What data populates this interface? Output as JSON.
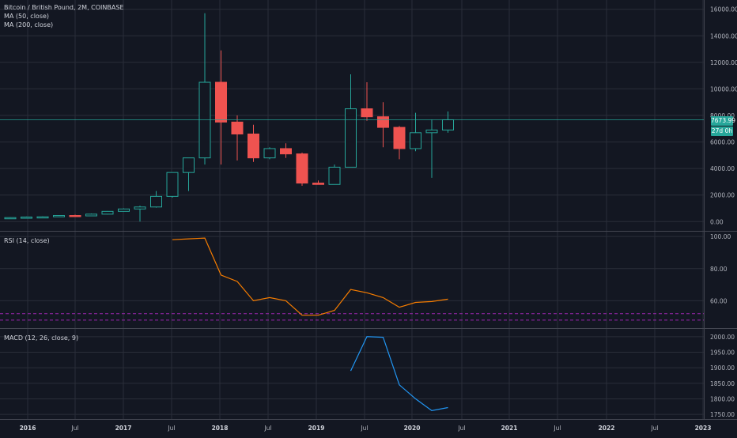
{
  "legend": {
    "symbol": "Bitcoin / British Pound, 2M, COINBASE",
    "ma50": "MA (50, close)",
    "ma200": "MA (200, close)"
  },
  "price_badges": {
    "last_price": "7673.99",
    "countdown": "27d 0h"
  },
  "colors": {
    "background": "#131722",
    "grid": "#2a2e39",
    "up": "#26a69a",
    "down": "#ef5350",
    "rsi_line": "#f57c00",
    "rsi_band": "#9c27b0",
    "macd_line": "#2196f3",
    "axis_text": "#b2b5be",
    "last_price_badge": "#26a69a"
  },
  "chart_data": [
    {
      "type": "candlestick",
      "title": "Bitcoin / British Pound, 2M, COINBASE",
      "x_ticks": [
        "2016",
        "Jul",
        "2017",
        "Jul",
        "2018",
        "Jul",
        "2019",
        "Jul",
        "2020",
        "Jul",
        "2021",
        "Jul",
        "2022",
        "Jul",
        "2023"
      ],
      "y_ticks": [
        "0.00",
        "2000.00",
        "4000.00",
        "6000.00",
        "8000.00",
        "10000.00",
        "12000.00",
        "14000.00",
        "16000.00"
      ],
      "ylim": [
        -700,
        16700
      ],
      "candles": [
        {
          "open": 280,
          "high": 330,
          "low": 240,
          "close": 300
        },
        {
          "open": 300,
          "high": 380,
          "low": 290,
          "close": 340
        },
        {
          "open": 340,
          "high": 400,
          "low": 300,
          "close": 360
        },
        {
          "open": 360,
          "high": 480,
          "low": 340,
          "close": 460
        },
        {
          "open": 460,
          "high": 520,
          "low": 400,
          "close": 430
        },
        {
          "open": 430,
          "high": 600,
          "low": 420,
          "close": 560
        },
        {
          "open": 560,
          "high": 800,
          "low": 540,
          "close": 770
        },
        {
          "open": 770,
          "high": 1000,
          "low": 750,
          "close": 950
        },
        {
          "open": 950,
          "high": 1200,
          "low": 0,
          "close": 1100
        },
        {
          "open": 1100,
          "high": 2300,
          "low": 1050,
          "close": 1900
        },
        {
          "open": 1900,
          "high": 3700,
          "low": 1800,
          "close": 3700
        },
        {
          "open": 3700,
          "high": 4800,
          "low": 2300,
          "close": 4800
        },
        {
          "open": 4800,
          "high": 15700,
          "low": 4300,
          "close": 10500
        },
        {
          "open": 10500,
          "high": 12900,
          "low": 4300,
          "close": 7500
        },
        {
          "open": 7500,
          "high": 8000,
          "low": 4600,
          "close": 6600
        },
        {
          "open": 6600,
          "high": 7300,
          "low": 4500,
          "close": 4800
        },
        {
          "open": 4800,
          "high": 5600,
          "low": 4700,
          "close": 5500
        },
        {
          "open": 5500,
          "high": 5900,
          "low": 4800,
          "close": 5100
        },
        {
          "open": 5100,
          "high": 5200,
          "low": 2700,
          "close": 2900
        },
        {
          "open": 2900,
          "high": 3100,
          "low": 2800,
          "close": 2800
        },
        {
          "open": 2800,
          "high": 4300,
          "low": 2800,
          "close": 4100
        },
        {
          "open": 4100,
          "high": 11100,
          "low": 4100,
          "close": 8500
        },
        {
          "open": 8500,
          "high": 10500,
          "low": 7600,
          "close": 7900
        },
        {
          "open": 7900,
          "high": 9000,
          "low": 5600,
          "close": 7100
        },
        {
          "open": 7100,
          "high": 7200,
          "low": 4700,
          "close": 5500
        },
        {
          "open": 5500,
          "high": 8200,
          "low": 5300,
          "close": 6700
        },
        {
          "open": 6700,
          "high": 7700,
          "low": 3300,
          "close": 6900
        },
        {
          "open": 6900,
          "high": 8300,
          "low": 6700,
          "close": 7673.99
        }
      ],
      "last_price": 7673.99
    },
    {
      "type": "line",
      "title": "RSI (14, close)",
      "y_ticks": [
        "60.00",
        "80.00",
        "100.00"
      ],
      "ylim": [
        43,
        103
      ],
      "bands": [
        52,
        48
      ],
      "series": [
        {
          "name": "RSI (14, close)",
          "values": [
            null,
            null,
            null,
            null,
            null,
            null,
            null,
            null,
            null,
            null,
            98,
            98.5,
            99,
            76,
            72,
            60,
            62,
            60,
            51,
            51,
            54,
            67,
            65,
            62,
            56,
            59,
            59.5,
            61
          ]
        }
      ]
    },
    {
      "type": "line",
      "title": "MACD (12, 26, close, 9)",
      "y_ticks": [
        "1750.00",
        "1800.00",
        "1850.00",
        "1900.00",
        "1950.00",
        "2000.00"
      ],
      "ylim": [
        1735,
        2025
      ],
      "series": [
        {
          "name": "MACD (12, 26, close, 9)",
          "values": [
            null,
            null,
            null,
            null,
            null,
            null,
            null,
            null,
            null,
            null,
            null,
            null,
            null,
            null,
            null,
            null,
            null,
            null,
            null,
            null,
            null,
            1890,
            2000,
            1998,
            1845,
            1800,
            1762,
            1772
          ]
        }
      ]
    }
  ]
}
